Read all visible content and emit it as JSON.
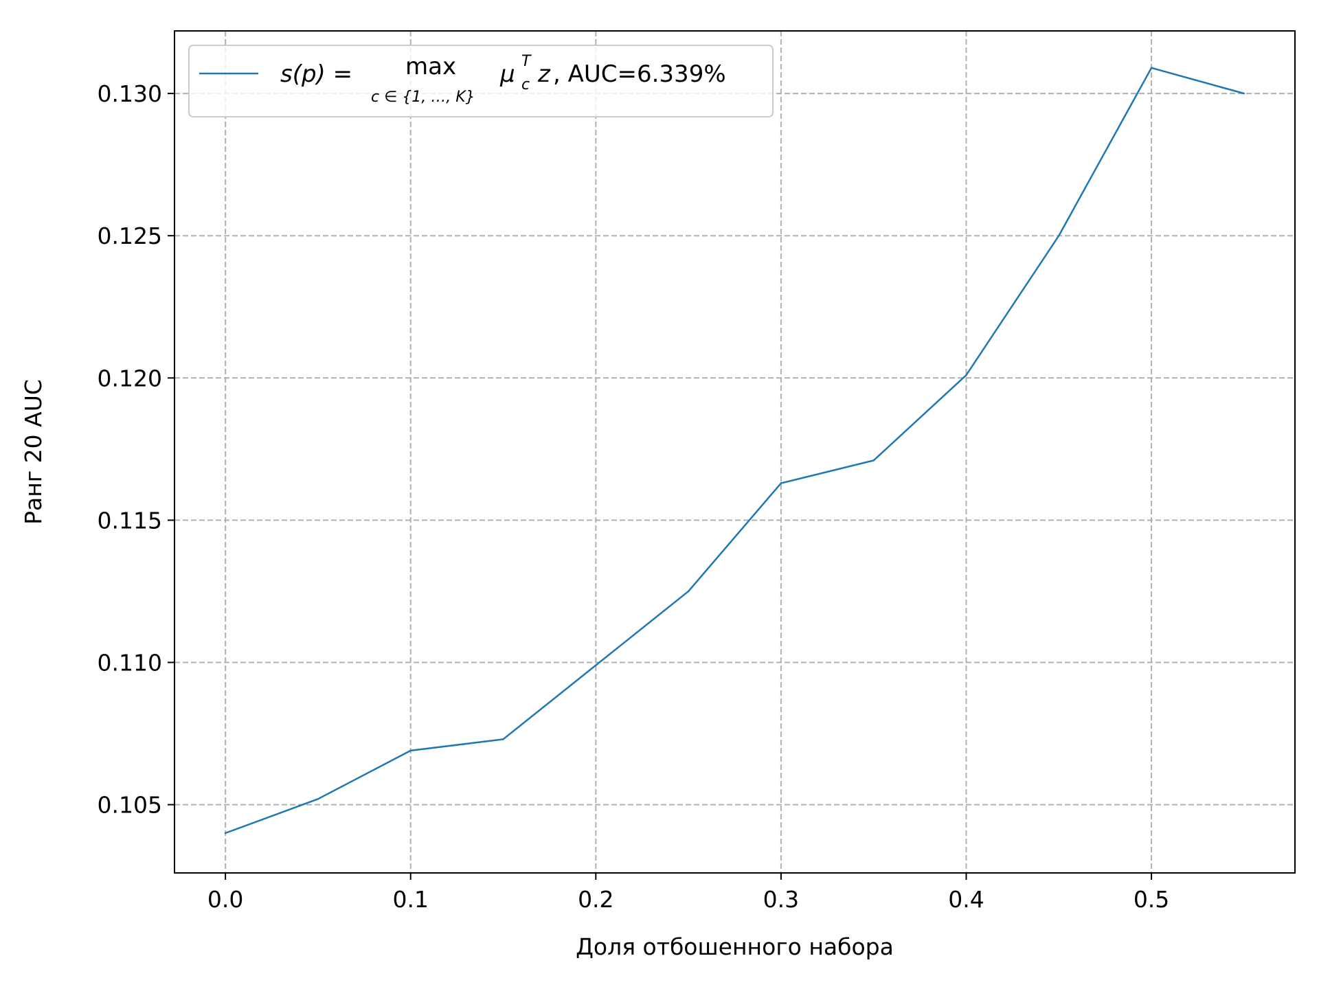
{
  "chart_data": {
    "type": "line",
    "title": "",
    "xlabel": "Доля отбошенного набора",
    "ylabel": "Ранг 20 AUC",
    "xlim": [
      -0.0275,
      0.5775
    ],
    "ylim": [
      0.1026,
      0.1322
    ],
    "x_ticks": [
      0.0,
      0.1,
      0.2,
      0.3,
      0.4,
      0.5
    ],
    "x_tick_labels": [
      "0.0",
      "0.1",
      "0.2",
      "0.3",
      "0.4",
      "0.5"
    ],
    "y_ticks": [
      0.105,
      0.11,
      0.115,
      0.12,
      0.125,
      0.13
    ],
    "y_tick_labels": [
      "0.105",
      "0.110",
      "0.115",
      "0.120",
      "0.125",
      "0.130"
    ],
    "grid": true,
    "legend_position": "top-left",
    "series": [
      {
        "name": "s(p) = max_{c∈{1,…,K}} μ_c^T z, AUC=6.339%",
        "legend": {
          "lhs": "s(p) = ",
          "op": "max",
          "op_sub": "c ∈ {1, …, K}",
          "mu": "μ",
          "mu_sup": "T",
          "mu_sub": "c",
          "z": "z",
          "rest": ", AUC=6.339%"
        },
        "color": "#1f77b4",
        "x": [
          0.0,
          0.05,
          0.1,
          0.15,
          0.2,
          0.25,
          0.3,
          0.35,
          0.4,
          0.45,
          0.5,
          0.55
        ],
        "y": [
          0.104,
          0.1052,
          0.1069,
          0.1073,
          0.1099,
          0.1125,
          0.1163,
          0.1171,
          0.1201,
          0.125,
          0.1309,
          0.13
        ]
      }
    ]
  }
}
